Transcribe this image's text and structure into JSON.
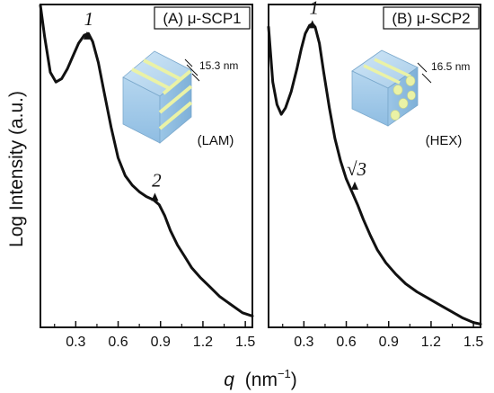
{
  "chart_data": [
    {
      "type": "line",
      "panel_label": "(A) μ-SCP1",
      "ylabel": "Log Intensity (a.u.)",
      "xlabel": "q (nm⁻¹)",
      "xlabel_symbol": "q",
      "xlabel_unit": "(nm",
      "xlabel_exp": "−1",
      "xlabel_close": ")",
      "xlim": [
        0.05,
        1.55
      ],
      "xticks": [
        0.3,
        0.6,
        0.9,
        1.2,
        1.5
      ],
      "tick_labels": [
        "0.3",
        "0.6",
        "0.9",
        "1.2",
        "1.5"
      ],
      "ylim": [
        0,
        10
      ],
      "series": [
        {
          "x": [
            0.05,
            0.08,
            0.12,
            0.16,
            0.2,
            0.24,
            0.28,
            0.32,
            0.36,
            0.39,
            0.42,
            0.46,
            0.5,
            0.55,
            0.6,
            0.65,
            0.7,
            0.75,
            0.8,
            0.85,
            0.89,
            0.93,
            0.97,
            1.02,
            1.07,
            1.12,
            1.18,
            1.25,
            1.32,
            1.4,
            1.48,
            1.55
          ],
          "y": [
            10.5,
            9.0,
            7.9,
            7.6,
            7.7,
            8.0,
            8.4,
            8.8,
            9.05,
            9.1,
            8.85,
            8.2,
            7.3,
            6.2,
            5.25,
            4.7,
            4.4,
            4.2,
            4.05,
            3.95,
            3.8,
            3.45,
            3.0,
            2.55,
            2.2,
            1.85,
            1.55,
            1.25,
            0.95,
            0.7,
            0.45,
            0.35
          ]
        }
      ],
      "annotations": [
        {
          "text": "1",
          "x": 0.38,
          "y": 9.25
        },
        {
          "text": "2",
          "x": 0.86,
          "y": 4.25
        }
      ],
      "inset": {
        "dimension": "15.3 nm",
        "phase": "(LAM)"
      }
    },
    {
      "type": "line",
      "panel_label": "(B) μ-SCP2",
      "xlabel": "q (nm⁻¹)",
      "xlim": [
        0.05,
        1.55
      ],
      "xticks": [
        0.3,
        0.6,
        0.9,
        1.2,
        1.5
      ],
      "tick_labels": [
        "0.3",
        "0.6",
        "0.9",
        "1.2",
        "1.5"
      ],
      "ylim": [
        0,
        10
      ],
      "series": [
        {
          "x": [
            0.05,
            0.08,
            0.11,
            0.14,
            0.17,
            0.21,
            0.25,
            0.28,
            0.31,
            0.34,
            0.36,
            0.38,
            0.41,
            0.44,
            0.48,
            0.52,
            0.56,
            0.6,
            0.64,
            0.68,
            0.72,
            0.77,
            0.82,
            0.88,
            0.95,
            1.02,
            1.1,
            1.18,
            1.26,
            1.34,
            1.42,
            1.5,
            1.55
          ],
          "y": [
            9.3,
            7.6,
            6.9,
            6.6,
            6.8,
            7.3,
            8.0,
            8.6,
            9.1,
            9.35,
            9.4,
            9.3,
            8.8,
            7.9,
            6.8,
            5.85,
            5.15,
            4.6,
            4.2,
            3.8,
            3.35,
            2.85,
            2.4,
            2.0,
            1.65,
            1.35,
            1.1,
            0.9,
            0.7,
            0.5,
            0.3,
            0.15,
            0.1
          ]
        }
      ],
      "annotations": [
        {
          "text": "1",
          "x": 0.36,
          "y": 9.6
        },
        {
          "text": "√3",
          "x": 0.66,
          "y": 4.6
        }
      ],
      "inset": {
        "dimension": "16.5 nm",
        "phase": "(HEX)"
      }
    }
  ]
}
